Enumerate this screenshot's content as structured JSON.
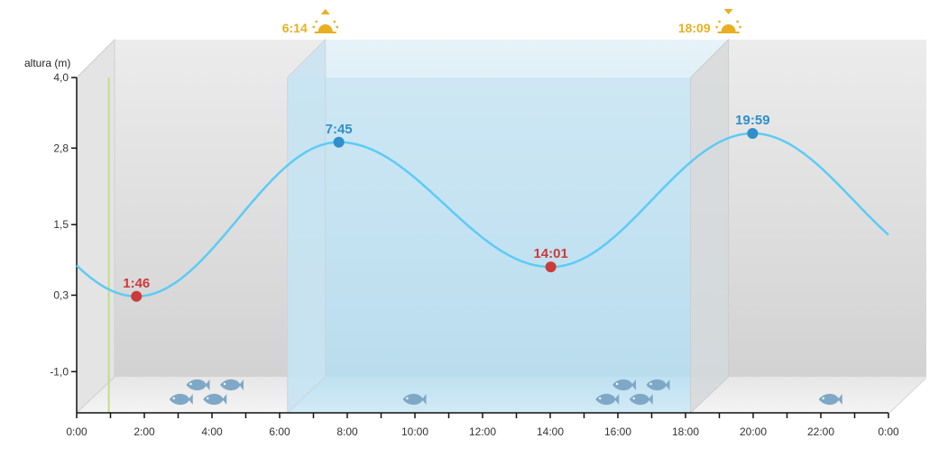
{
  "chart_data": {
    "type": "line",
    "ylabel": "altura (m)",
    "x_tick_labels": [
      "0:00",
      "2:00",
      "4:00",
      "6:00",
      "8:00",
      "10:00",
      "12:00",
      "14:00",
      "16:00",
      "18:00",
      "20:00",
      "22:00",
      "0:00"
    ],
    "y_tick_labels": [
      "4,0",
      "2,8",
      "1,5",
      "0,3",
      "-1,0"
    ],
    "y_ticks": [
      4.0,
      2.8,
      1.5,
      0.3,
      -1.0
    ],
    "xlim": [
      0,
      24
    ],
    "ylim": [
      -1.7,
      4.0
    ],
    "current_time": 0.95,
    "sunrise": {
      "label": "6:14",
      "hour": 6.233
    },
    "sunset": {
      "label": "18:09",
      "hour": 18.15
    },
    "tide_events": [
      {
        "type": "low",
        "label": "1:46",
        "hour": 1.767,
        "height": 0.28
      },
      {
        "type": "high",
        "label": "7:45",
        "hour": 7.75,
        "height": 2.9
      },
      {
        "type": "low",
        "label": "14:01",
        "hour": 14.017,
        "height": 0.78
      },
      {
        "type": "high",
        "label": "19:59",
        "hour": 19.983,
        "height": 3.05
      }
    ],
    "curve_start_height": 0.68,
    "curve_end_height": 0.74,
    "fish": [
      {
        "hour": 3.4,
        "row": 0
      },
      {
        "hour": 4.4,
        "row": 0
      },
      {
        "hour": 2.9,
        "row": 1
      },
      {
        "hour": 3.9,
        "row": 1
      },
      {
        "hour": 9.8,
        "row": 1
      },
      {
        "hour": 16.0,
        "row": 0
      },
      {
        "hour": 17.0,
        "row": 0
      },
      {
        "hour": 15.5,
        "row": 1
      },
      {
        "hour": 16.5,
        "row": 1
      },
      {
        "hour": 22.1,
        "row": 1
      }
    ],
    "colors": {
      "tide_line": "#5ccbf5",
      "high_marker": "#2f8fc9",
      "low_marker": "#cc3a3a",
      "sun": "#e8b020",
      "current_time": "#c4dc8c",
      "night_wall": "#d4d4d4",
      "day_wall": "#bcdff0",
      "fish": "#7fa8c6"
    }
  }
}
